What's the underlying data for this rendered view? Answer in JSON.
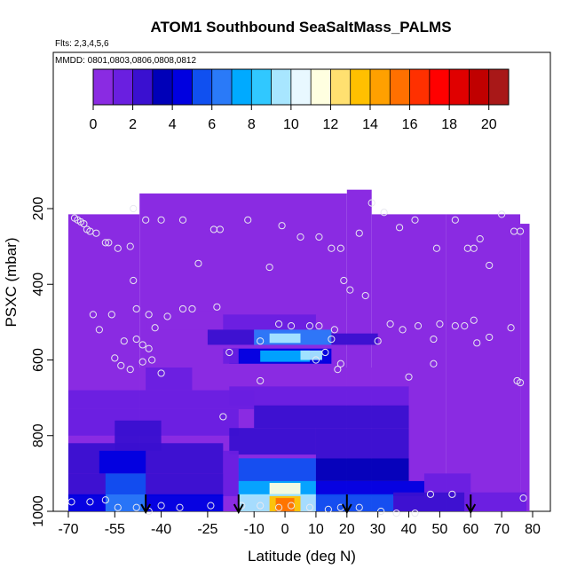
{
  "chart_data": {
    "type": "heatmap",
    "title": "ATOM1 Southbound SeaSaltMass_PALMS",
    "flights_note": "Flts: 2,3,4,5,6",
    "dates_note": "MMDD: 0801,0803,0806,0808,0812",
    "xlabel": "Latitude (deg N)",
    "ylabel": "PSXC (mbar)",
    "xlim": [
      -70,
      80
    ],
    "ylim": [
      1000,
      0
    ],
    "x_ticks": [
      -70,
      -55,
      -40,
      -25,
      -10,
      0,
      10,
      20,
      30,
      40,
      50,
      60,
      70,
      80
    ],
    "x_tick_labels": [
      "-70",
      "-55",
      "-40",
      "-25",
      "-10",
      "0",
      "10",
      "20",
      "30",
      "40",
      "50",
      "60",
      "70",
      "80"
    ],
    "y_ticks": [
      200,
      400,
      600,
      800,
      1000
    ],
    "y_tick_labels": [
      "200",
      "400",
      "600",
      "800",
      "1000"
    ],
    "colorbar": {
      "min": 0,
      "max": 21,
      "ticks": [
        0,
        2,
        4,
        6,
        8,
        10,
        12,
        14,
        16,
        18,
        20
      ],
      "tick_labels": [
        "0",
        "2",
        "4",
        "6",
        "8",
        "10",
        "12",
        "14",
        "16",
        "18",
        "20"
      ],
      "colors": [
        "#8a2be2",
        "#6a1fe0",
        "#3a10d0",
        "#0000b8",
        "#0000e0",
        "#1050f0",
        "#2a7af8",
        "#00aaff",
        "#30c8ff",
        "#a8e6ff",
        "#e8f8ff",
        "#ffffe0",
        "#ffe070",
        "#ffc000",
        "#ffa000",
        "#ff7000",
        "#ff3000",
        "#ff0000",
        "#e00000",
        "#c00000",
        "#a81818"
      ]
    },
    "background_color": "#8a2be2",
    "domain": [
      {
        "x0": -70,
        "x1": -47,
        "ytop": 215
      },
      {
        "x0": -47,
        "x1": 20,
        "ytop": 160
      },
      {
        "x0": 20,
        "x1": 28,
        "ytop": 150
      },
      {
        "x0": 28,
        "x1": 52,
        "ytop": 215
      },
      {
        "x0": 52,
        "x1": 76,
        "ytop": 215
      },
      {
        "x0": 76,
        "x1": 79,
        "ytop": 240
      }
    ],
    "cells": [
      {
        "x0": -45,
        "x1": -20,
        "y0": 470,
        "y1": 520,
        "v": 0.8
      },
      {
        "x0": -20,
        "x1": 10,
        "y0": 480,
        "y1": 520,
        "v": 1.5
      },
      {
        "x0": -25,
        "x1": -10,
        "y0": 520,
        "y1": 560,
        "v": 2.5
      },
      {
        "x0": -10,
        "x1": 15,
        "y0": 520,
        "y1": 560,
        "v": 6.5
      },
      {
        "x0": -5,
        "x1": 5,
        "y0": 530,
        "y1": 555,
        "v": 9.0
      },
      {
        "x0": 15,
        "x1": 30,
        "y0": 530,
        "y1": 560,
        "v": 2.0
      },
      {
        "x0": -18,
        "x1": 15,
        "y0": 570,
        "y1": 610,
        "v": 4.5
      },
      {
        "x0": -8,
        "x1": 8,
        "y0": 575,
        "y1": 605,
        "v": 7.0
      },
      {
        "x0": 5,
        "x1": 12,
        "y0": 575,
        "y1": 600,
        "v": 9.0
      },
      {
        "x0": -20,
        "x1": -15,
        "y0": 570,
        "y1": 610,
        "v": 1.5
      },
      {
        "x0": -70,
        "x1": 40,
        "y0": 620,
        "y1": 680,
        "v": 0.8
      },
      {
        "x0": -45,
        "x1": -30,
        "y0": 620,
        "y1": 680,
        "v": 1.5
      },
      {
        "x0": -18,
        "x1": 40,
        "y0": 670,
        "y1": 720,
        "v": 1.8
      },
      {
        "x0": -70,
        "x1": -10,
        "y0": 680,
        "y1": 730,
        "v": 1.2
      },
      {
        "x0": -10,
        "x1": 40,
        "y0": 720,
        "y1": 780,
        "v": 2.0
      },
      {
        "x0": -70,
        "x1": -15,
        "y0": 730,
        "y1": 800,
        "v": 1.5
      },
      {
        "x0": -55,
        "x1": -40,
        "y0": 760,
        "y1": 840,
        "v": 2.2
      },
      {
        "x0": -18,
        "x1": 10,
        "y0": 780,
        "y1": 850,
        "v": 2.5
      },
      {
        "x0": 10,
        "x1": 40,
        "y0": 780,
        "y1": 860,
        "v": 2.0
      },
      {
        "x0": -70,
        "x1": -20,
        "y0": 820,
        "y1": 900,
        "v": 2.0
      },
      {
        "x0": -60,
        "x1": -45,
        "y0": 840,
        "y1": 900,
        "v": 4.0
      },
      {
        "x0": -20,
        "x1": -15,
        "y0": 840,
        "y1": 960,
        "v": 1.0
      },
      {
        "x0": -15,
        "x1": 10,
        "y0": 860,
        "y1": 920,
        "v": 5.5
      },
      {
        "x0": 10,
        "x1": 40,
        "y0": 860,
        "y1": 920,
        "v": 3.5
      },
      {
        "x0": -70,
        "x1": -20,
        "y0": 900,
        "y1": 960,
        "v": 2.5
      },
      {
        "x0": -58,
        "x1": -45,
        "y0": 900,
        "y1": 960,
        "v": 5.0
      },
      {
        "x0": -15,
        "x1": 10,
        "y0": 920,
        "y1": 960,
        "v": 7.5
      },
      {
        "x0": -5,
        "x1": 5,
        "y0": 925,
        "y1": 955,
        "v": 11.0
      },
      {
        "x0": 10,
        "x1": 45,
        "y0": 920,
        "y1": 960,
        "v": 4.0
      },
      {
        "x0": 45,
        "x1": 60,
        "y0": 900,
        "y1": 950,
        "v": 1.0
      },
      {
        "x0": -70,
        "x1": -20,
        "y0": 955,
        "y1": 1000,
        "v": 4.0
      },
      {
        "x0": -58,
        "x1": -45,
        "y0": 955,
        "y1": 1000,
        "v": 6.5
      },
      {
        "x0": -15,
        "x1": 10,
        "y0": 955,
        "y1": 1000,
        "v": 9.5
      },
      {
        "x0": -5,
        "x1": 5,
        "y0": 960,
        "y1": 1000,
        "v": 13.5
      },
      {
        "x0": -3,
        "x1": 3,
        "y0": 965,
        "y1": 1000,
        "v": 15.5
      },
      {
        "x0": 10,
        "x1": 35,
        "y0": 955,
        "y1": 1000,
        "v": 5.5
      },
      {
        "x0": 35,
        "x1": 58,
        "y0": 950,
        "y1": 1000,
        "v": 2.0
      },
      {
        "x0": 58,
        "x1": 78,
        "y0": 950,
        "y1": 1000,
        "v": 1.5
      }
    ],
    "sample_points": [
      [
        -68,
        225
      ],
      [
        -67,
        230
      ],
      [
        -66,
        235
      ],
      [
        -65,
        240
      ],
      [
        -64,
        255
      ],
      [
        -63,
        260
      ],
      [
        -61,
        265
      ],
      [
        -58,
        290
      ],
      [
        -57,
        290
      ],
      [
        -54,
        305
      ],
      [
        -50,
        300
      ],
      [
        -49,
        200
      ],
      [
        -45,
        230
      ],
      [
        -40,
        230
      ],
      [
        -33,
        230
      ],
      [
        -28,
        345
      ],
      [
        -23,
        255
      ],
      [
        -21,
        255
      ],
      [
        -12,
        230
      ],
      [
        -5,
        355
      ],
      [
        -1,
        245
      ],
      [
        5,
        275
      ],
      [
        11,
        275
      ],
      [
        15,
        305
      ],
      [
        18,
        305
      ],
      [
        24,
        265
      ],
      [
        28,
        185
      ],
      [
        32,
        210
      ],
      [
        37,
        250
      ],
      [
        42,
        230
      ],
      [
        49,
        305
      ],
      [
        55,
        230
      ],
      [
        59,
        305
      ],
      [
        61,
        305
      ],
      [
        63,
        280
      ],
      [
        66,
        350
      ],
      [
        70,
        215
      ],
      [
        74,
        260
      ],
      [
        76,
        260
      ],
      [
        -49,
        390
      ],
      [
        -48,
        465
      ],
      [
        -44,
        480
      ],
      [
        -38,
        485
      ],
      [
        -33,
        465
      ],
      [
        -30,
        465
      ],
      [
        -22,
        460
      ],
      [
        -18,
        580
      ],
      [
        -8,
        550
      ],
      [
        -2,
        505
      ],
      [
        2,
        510
      ],
      [
        8,
        510
      ],
      [
        11,
        510
      ],
      [
        15,
        545
      ],
      [
        16,
        520
      ],
      [
        19,
        390
      ],
      [
        21,
        415
      ],
      [
        26,
        430
      ],
      [
        30,
        550
      ],
      [
        34,
        505
      ],
      [
        38,
        520
      ],
      [
        43,
        510
      ],
      [
        48,
        545
      ],
      [
        50,
        505
      ],
      [
        55,
        510
      ],
      [
        58,
        510
      ],
      [
        61,
        495
      ],
      [
        62,
        555
      ],
      [
        66,
        540
      ],
      [
        73,
        515
      ],
      [
        75,
        655
      ],
      [
        76,
        660
      ],
      [
        -62,
        480
      ],
      [
        -60,
        520
      ],
      [
        -56,
        480
      ],
      [
        -52,
        550
      ],
      [
        -48,
        545
      ],
      [
        -46,
        560
      ],
      [
        -44,
        570
      ],
      [
        -42,
        515
      ],
      [
        -55,
        595
      ],
      [
        -53,
        615
      ],
      [
        -50,
        625
      ],
      [
        -46,
        605
      ],
      [
        -43,
        600
      ],
      [
        -40,
        635
      ],
      [
        -8,
        655
      ],
      [
        10,
        600
      ],
      [
        13,
        580
      ],
      [
        17,
        625
      ],
      [
        18,
        610
      ],
      [
        40,
        645
      ],
      [
        48,
        610
      ],
      [
        -20,
        750
      ],
      [
        -69,
        975
      ],
      [
        -63,
        975
      ],
      [
        -58,
        970
      ],
      [
        -54,
        990
      ],
      [
        -48,
        990
      ],
      [
        -44,
        1000
      ],
      [
        -40,
        985
      ],
      [
        -34,
        990
      ],
      [
        -24,
        985
      ],
      [
        -14,
        985
      ],
      [
        -8,
        985
      ],
      [
        -2,
        990
      ],
      [
        2,
        985
      ],
      [
        8,
        990
      ],
      [
        14,
        995
      ],
      [
        18,
        990
      ],
      [
        24,
        990
      ],
      [
        31,
        1000
      ],
      [
        36,
        1005
      ],
      [
        42,
        1005
      ],
      [
        47,
        955
      ],
      [
        54,
        955
      ],
      [
        77,
        965
      ]
    ],
    "arrow_latitudes": [
      -45,
      -15,
      20,
      60
    ]
  }
}
